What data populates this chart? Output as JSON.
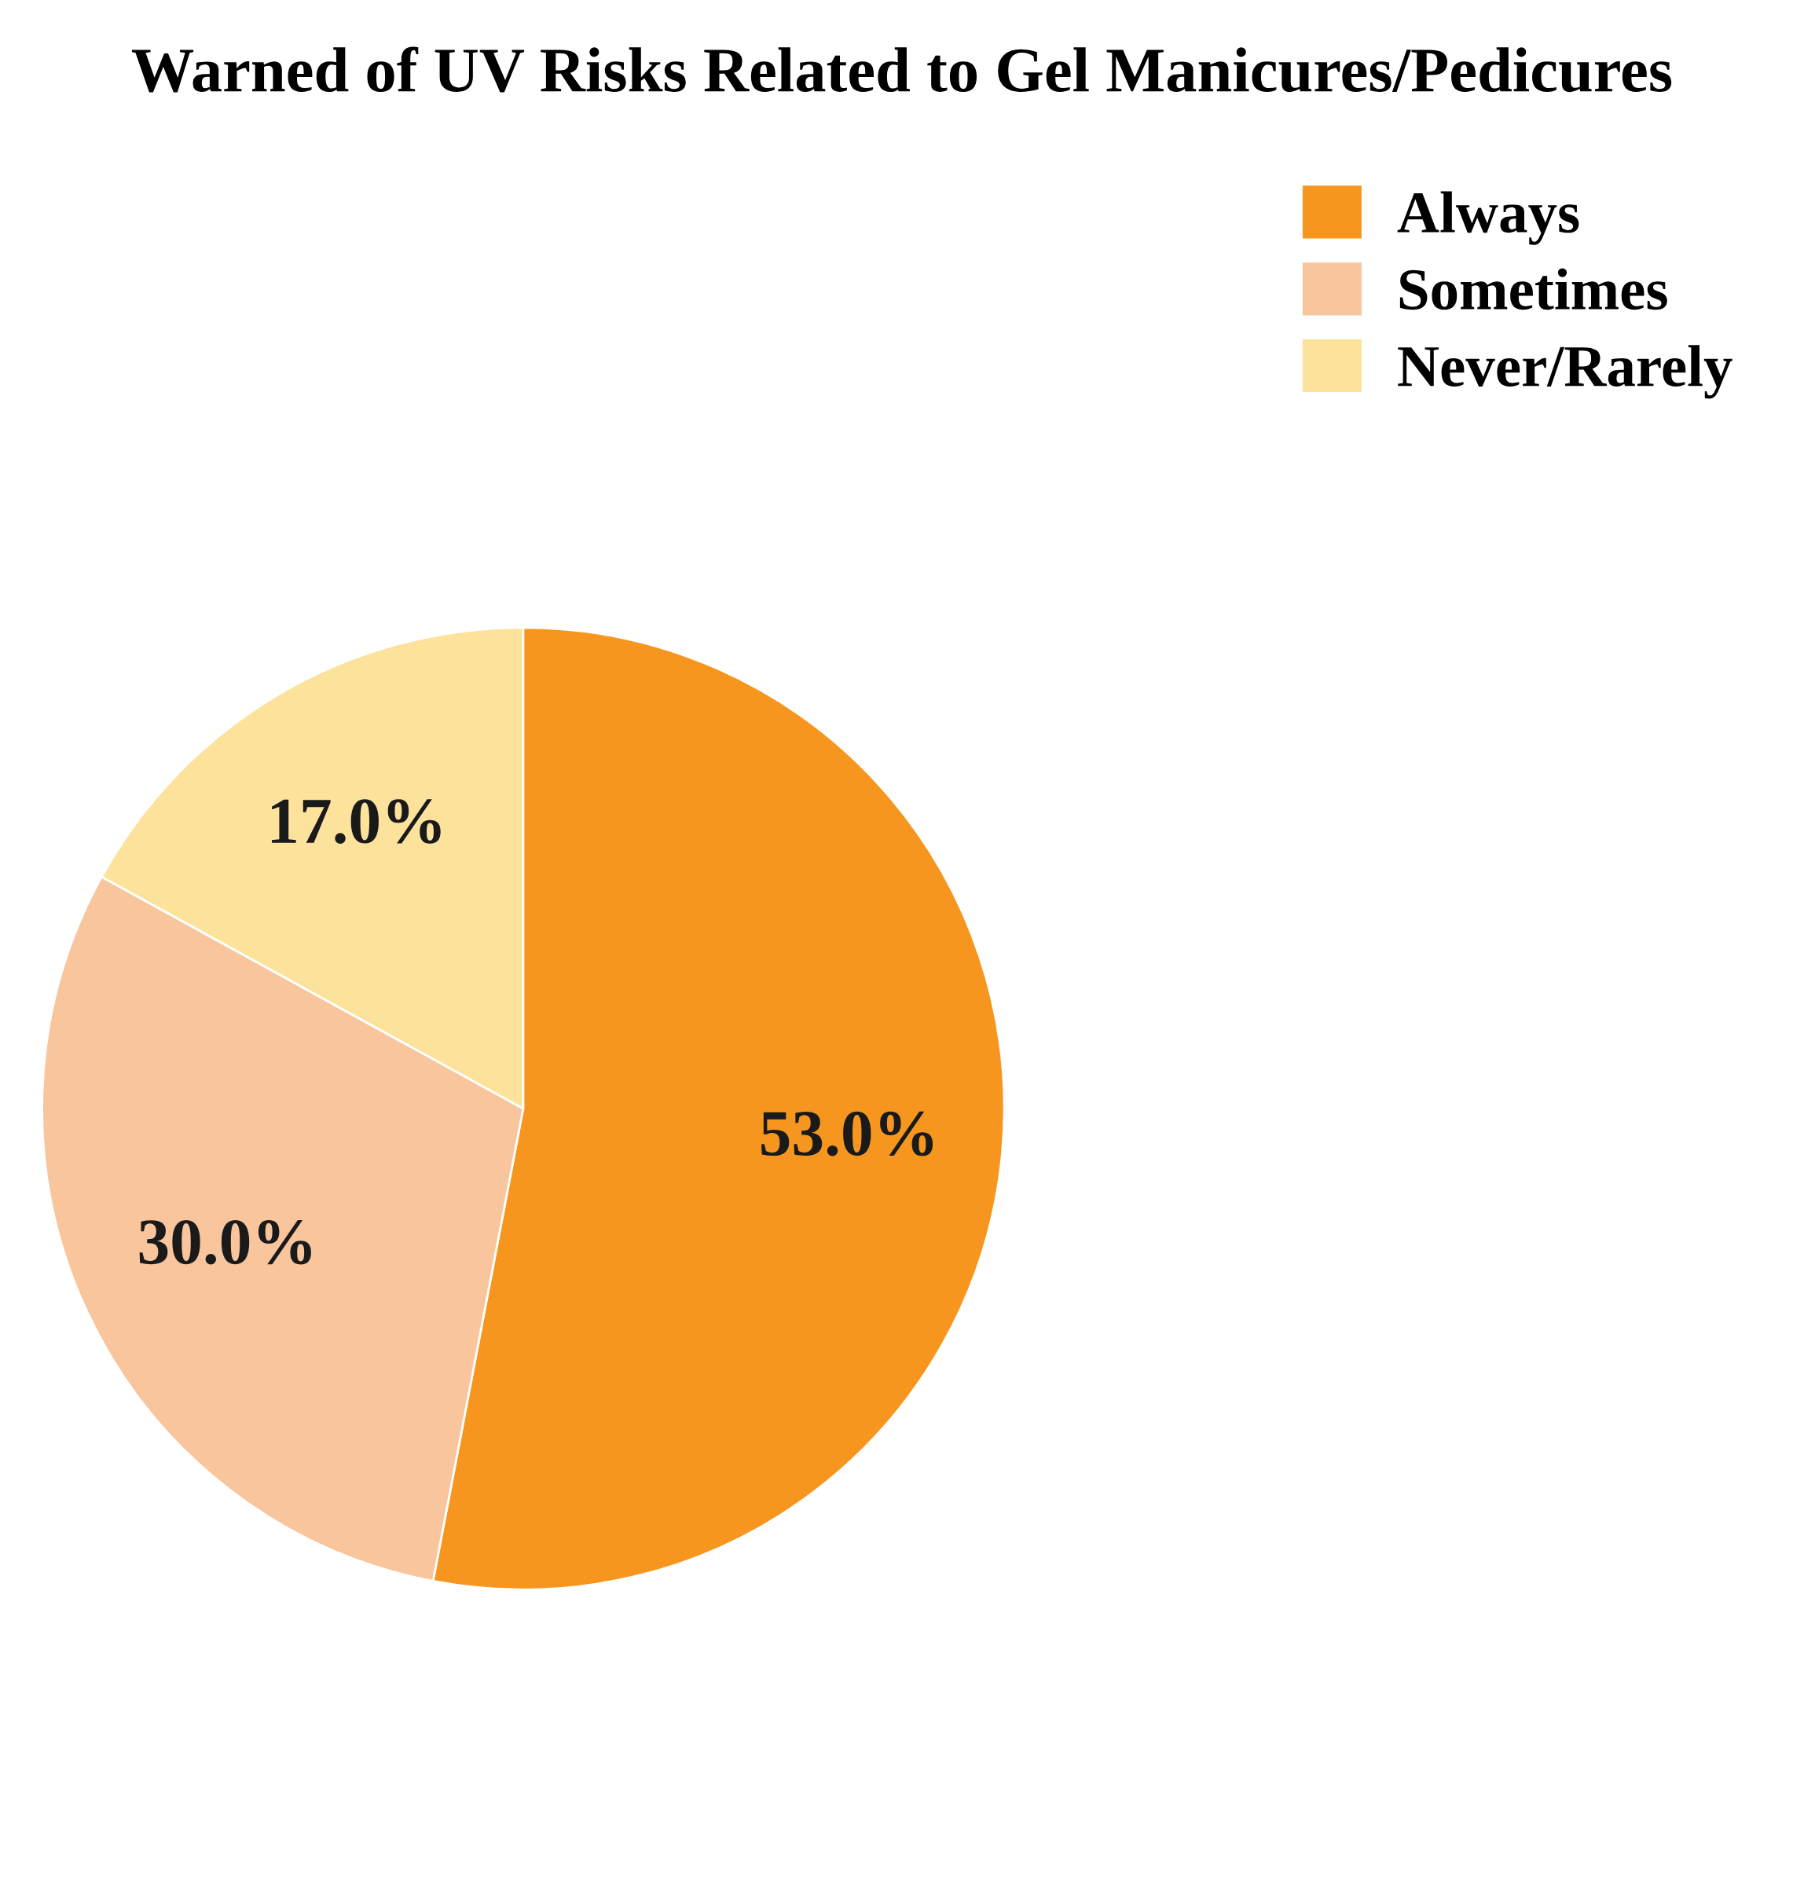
{
  "chart_data": {
    "type": "pie",
    "title": "Warned of UV Risks Related to Gel Manicures/Pedicures",
    "categories": [
      "Always",
      "Sometimes",
      "Never/Rarely"
    ],
    "values": [
      53.0,
      30.0,
      17.0
    ],
    "colors": [
      "#f7961f",
      "#f8c59d",
      "#fde29c"
    ],
    "value_labels": [
      "53.0%",
      "30.0%",
      "17.0%"
    ],
    "legend": "top right"
  }
}
